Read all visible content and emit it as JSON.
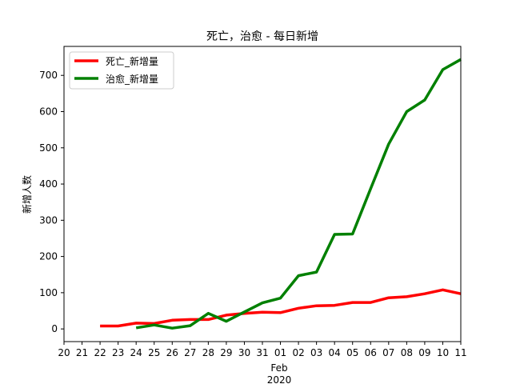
{
  "chart_data": {
    "type": "line",
    "title": "死亡，治愈 - 每日新增",
    "ylabel": "新增人数",
    "xlabel": "",
    "x": [
      "2020-01-20",
      "2020-01-21",
      "2020-01-22",
      "2020-01-23",
      "2020-01-24",
      "2020-01-25",
      "2020-01-26",
      "2020-01-27",
      "2020-01-28",
      "2020-01-29",
      "2020-01-30",
      "2020-01-31",
      "2020-02-01",
      "2020-02-02",
      "2020-02-03",
      "2020-02-04",
      "2020-02-05",
      "2020-02-06",
      "2020-02-07",
      "2020-02-08",
      "2020-02-09",
      "2020-02-10",
      "2020-02-11"
    ],
    "x_tick_labels": [
      "20",
      "21",
      "22",
      "23",
      "24",
      "25",
      "26",
      "27",
      "28",
      "29",
      "30",
      "31",
      "01",
      "02",
      "03",
      "04",
      "05",
      "06",
      "07",
      "08",
      "09",
      "10",
      "11"
    ],
    "x_month_label": "Feb",
    "x_year_label": "2020",
    "y_ticks": [
      0,
      100,
      200,
      300,
      400,
      500,
      600,
      700
    ],
    "ylim": [
      -35,
      780
    ],
    "grid": false,
    "legend_position": "upper-left",
    "series": [
      {
        "name": "死亡_新增量",
        "color": "#ff0000",
        "values": [
          null,
          null,
          8,
          8,
          16,
          15,
          24,
          26,
          26,
          38,
          43,
          46,
          45,
          57,
          64,
          65,
          73,
          73,
          86,
          89,
          97,
          108,
          97
        ]
      },
      {
        "name": "治愈_新增量",
        "color": "#008000",
        "values": [
          null,
          null,
          null,
          null,
          3,
          11,
          2,
          9,
          43,
          21,
          47,
          72,
          85,
          147,
          157,
          261,
          262,
          387,
          510,
          600,
          632,
          716,
          744
        ]
      }
    ]
  }
}
